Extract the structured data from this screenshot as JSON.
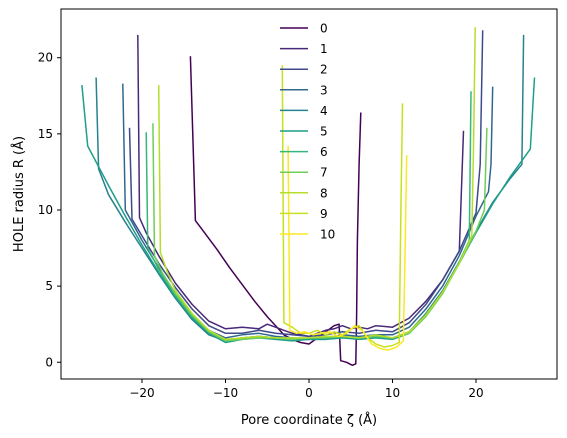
{
  "chart_data": {
    "type": "line",
    "title": "",
    "xlabel": "Pore coordinate ζ (Å)",
    "ylabel": "HOLE radius R (Å)",
    "xlim": [
      -29.7,
      29.7
    ],
    "ylim": [
      -1.1,
      23.2
    ],
    "xticks": [
      -20,
      -10,
      0,
      10,
      20
    ],
    "yticks": [
      0,
      5,
      10,
      15,
      20
    ],
    "grid": false,
    "legend_placement": "upper center",
    "series": [
      {
        "name": "0",
        "color": "#440154",
        "x": [
          -14.2,
          -13.6,
          -12.5,
          -11.0,
          -9.5,
          -8.0,
          -6.5,
          -5.0,
          -4.0,
          -3.0,
          -2.0,
          -1.0,
          0.0,
          1.0,
          2.0,
          3.0,
          3.6,
          3.8,
          4.5,
          5.2,
          5.6,
          5.7,
          5.8,
          6.0,
          6.2
        ],
        "y": [
          20.1,
          9.3,
          8.5,
          7.4,
          6.2,
          5.1,
          4.0,
          3.0,
          2.4,
          1.8,
          1.5,
          1.3,
          1.2,
          1.6,
          2.0,
          2.4,
          2.5,
          0.1,
          0.0,
          -0.2,
          -0.1,
          3.0,
          8.0,
          13.0,
          16.4
        ]
      },
      {
        "name": "1",
        "color": "#482878",
        "x": [
          -20.5,
          -20.3,
          -19.5,
          -18.0,
          -16.0,
          -14.0,
          -12.0,
          -10.0,
          -8.0,
          -6.0,
          -5.0,
          -4.0,
          -3.0,
          -2.0,
          -1.0,
          0.0,
          1.0,
          2.0,
          3.0,
          4.0,
          5.0,
          6.0,
          7.0,
          8.0,
          10.0,
          12.0,
          14.0,
          16.0,
          18.0,
          18.5
        ],
        "y": [
          21.5,
          9.5,
          8.5,
          7.0,
          5.2,
          3.8,
          2.7,
          2.2,
          2.3,
          2.2,
          2.5,
          2.3,
          2.1,
          1.9,
          1.8,
          1.7,
          1.9,
          2.1,
          2.2,
          2.4,
          2.2,
          2.3,
          2.2,
          2.4,
          2.3,
          2.9,
          4.0,
          5.4,
          7.3,
          15.2
        ]
      },
      {
        "name": "2",
        "color": "#3e4a89",
        "x": [
          -21.5,
          -21.2,
          -20.0,
          -18.0,
          -16.0,
          -14.0,
          -12.0,
          -10.0,
          -8.0,
          -6.0,
          -4.0,
          -2.0,
          0.0,
          2.0,
          4.0,
          6.0,
          8.0,
          10.0,
          12.0,
          14.0,
          16.0,
          18.0,
          20.0,
          20.5,
          20.8
        ],
        "y": [
          15.4,
          9.4,
          8.3,
          6.5,
          4.9,
          3.5,
          2.4,
          1.9,
          1.9,
          2.1,
          1.9,
          1.8,
          1.7,
          1.8,
          2.0,
          1.9,
          2.1,
          2.0,
          2.6,
          3.8,
          5.4,
          7.3,
          9.8,
          13.0,
          21.8
        ]
      },
      {
        "name": "3",
        "color": "#31688e",
        "x": [
          -22.3,
          -22.0,
          -20.0,
          -18.0,
          -16.0,
          -14.0,
          -12.0,
          -10.0,
          -8.0,
          -6.0,
          -4.0,
          -2.0,
          0.0,
          2.0,
          4.0,
          6.0,
          8.0,
          10.0,
          12.0,
          14.0,
          16.0,
          18.0,
          20.0,
          21.5,
          21.8,
          22.0
        ],
        "y": [
          18.3,
          10.0,
          8.0,
          6.2,
          4.5,
          3.1,
          2.1,
          1.6,
          1.8,
          1.9,
          1.7,
          1.6,
          1.5,
          1.6,
          1.8,
          1.7,
          1.8,
          1.8,
          2.3,
          3.5,
          5.0,
          7.0,
          9.6,
          11.2,
          13.0,
          18.1
        ]
      },
      {
        "name": "4",
        "color": "#26828e",
        "x": [
          -25.5,
          -25.2,
          -24.0,
          -22.0,
          -20.0,
          -18.0,
          -16.0,
          -14.0,
          -12.0,
          -10.0,
          -8.0,
          -6.0,
          -4.0,
          -2.0,
          0.0,
          2.0,
          4.0,
          6.0,
          8.0,
          10.0,
          12.0,
          14.0,
          16.0,
          18.0,
          20.0,
          22.0,
          24.0,
          25.5,
          25.7
        ],
        "y": [
          18.7,
          12.7,
          11.0,
          9.2,
          7.5,
          5.8,
          4.2,
          2.8,
          1.8,
          1.4,
          1.6,
          1.7,
          1.6,
          1.5,
          1.5,
          1.5,
          1.7,
          1.6,
          1.7,
          1.6,
          2.0,
          3.2,
          4.7,
          6.6,
          8.6,
          10.5,
          12.0,
          13.0,
          21.5
        ]
      },
      {
        "name": "5",
        "color": "#1f9e89",
        "x": [
          -27.2,
          -26.5,
          -24.0,
          -22.0,
          -20.0,
          -18.0,
          -16.0,
          -14.0,
          -12.0,
          -10.0,
          -8.0,
          -6.0,
          -4.0,
          -2.0,
          0.0,
          2.0,
          4.0,
          6.0,
          8.0,
          10.0,
          12.0,
          14.0,
          16.0,
          18.0,
          20.0,
          22.0,
          24.0,
          26.5,
          27.0
        ],
        "y": [
          18.2,
          14.2,
          11.6,
          9.6,
          7.7,
          5.9,
          4.3,
          2.9,
          1.9,
          1.3,
          1.5,
          1.6,
          1.5,
          1.4,
          1.5,
          1.5,
          1.6,
          1.5,
          1.6,
          1.5,
          1.9,
          3.1,
          4.6,
          6.5,
          8.5,
          10.4,
          12.1,
          14.0,
          18.7
        ]
      },
      {
        "name": "6",
        "color": "#35b779",
        "x": [
          -19.5,
          -19.3,
          -18.0,
          -16.0,
          -14.0,
          -12.0,
          -10.0,
          -8.0,
          -6.0,
          -4.0,
          -2.0,
          0.0,
          2.0,
          4.0,
          6.0,
          8.0,
          10.0,
          12.0,
          14.0,
          16.0,
          18.0,
          19.2,
          19.4
        ],
        "y": [
          15.1,
          7.5,
          6.1,
          4.4,
          3.0,
          2.0,
          1.4,
          1.6,
          1.7,
          1.6,
          1.5,
          1.6,
          1.6,
          1.7,
          1.6,
          1.7,
          1.6,
          1.9,
          3.1,
          4.6,
          6.6,
          8.0,
          17.8
        ]
      },
      {
        "name": "7",
        "color": "#6ece58",
        "x": [
          -18.7,
          -18.5,
          -17.5,
          -16.0,
          -14.0,
          -12.0,
          -10.0,
          -8.0,
          -6.0,
          -4.0,
          -2.0,
          0.0,
          2.0,
          4.0,
          6.0,
          8.0,
          10.0,
          12.0,
          14.0,
          16.0,
          18.0,
          20.0,
          21.0,
          21.3
        ],
        "y": [
          15.7,
          7.0,
          5.8,
          4.5,
          3.1,
          2.0,
          1.4,
          1.5,
          1.6,
          1.6,
          1.5,
          1.6,
          1.6,
          1.7,
          1.6,
          1.7,
          1.6,
          1.9,
          3.0,
          4.5,
          6.5,
          8.6,
          10.0,
          15.4
        ]
      },
      {
        "name": "8",
        "color": "#b5de2b",
        "x": [
          -18.0,
          -17.8,
          -17.0,
          -16.0,
          -14.0,
          -12.0,
          -10.0,
          -8.0,
          -6.0,
          -4.0,
          -2.0,
          0.0,
          2.0,
          4.0,
          6.0,
          8.0,
          10.0,
          12.0,
          14.0,
          16.0,
          18.0,
          19.5,
          19.7,
          19.9
        ],
        "y": [
          18.2,
          7.2,
          6.0,
          4.7,
          3.2,
          2.1,
          1.5,
          1.6,
          1.7,
          1.6,
          1.6,
          1.6,
          1.7,
          1.7,
          1.6,
          1.8,
          1.6,
          2.0,
          3.1,
          4.6,
          6.5,
          8.3,
          14.0,
          22.0
        ]
      },
      {
        "name": "9",
        "color": "#c8e020",
        "x": [
          -3.2,
          -3.0,
          -2.0,
          -1.0,
          0.0,
          1.0,
          2.0,
          3.0,
          4.0,
          5.0,
          6.0,
          7.0,
          8.0,
          9.0,
          10.0,
          10.8,
          11.0,
          11.2
        ],
        "y": [
          19.5,
          2.6,
          2.3,
          1.9,
          1.9,
          2.1,
          1.8,
          2.0,
          1.8,
          2.2,
          2.4,
          1.6,
          1.2,
          1.0,
          1.1,
          1.3,
          10.0,
          17.0
        ]
      },
      {
        "name": "10",
        "color": "#fde725",
        "x": [
          -2.5,
          -2.3,
          -1.5,
          -0.5,
          0.5,
          1.5,
          2.5,
          3.5,
          4.5,
          5.5,
          6.5,
          7.5,
          8.5,
          9.5,
          10.5,
          11.3,
          11.5,
          11.7
        ],
        "y": [
          14.2,
          2.1,
          1.9,
          2.0,
          1.8,
          1.9,
          2.0,
          1.7,
          1.9,
          2.4,
          2.0,
          1.2,
          0.9,
          0.8,
          1.0,
          1.4,
          7.0,
          13.6
        ]
      }
    ]
  }
}
